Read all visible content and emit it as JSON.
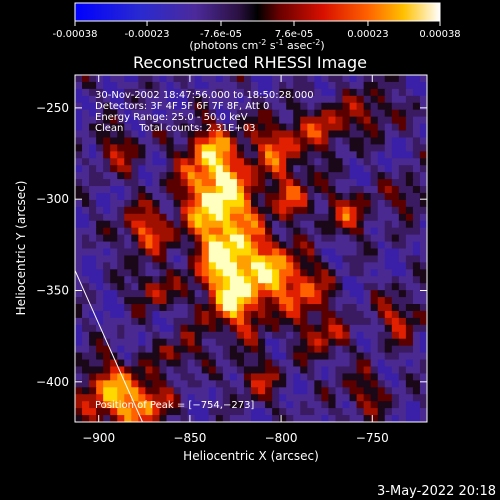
{
  "colorbar": {
    "ticks": [
      "-0.00038",
      "-0.00023",
      "-7.6e-05",
      "7.6e-05",
      "0.00023",
      "0.00038"
    ],
    "tick_values": [
      -0.00038,
      -0.00023,
      -7.6e-05,
      7.6e-05,
      0.00023,
      0.00038
    ],
    "range": [
      -0.00038,
      0.00038
    ],
    "unit_main": "(photons cm",
    "unit_sup1": "-2",
    "unit_mid": " s",
    "unit_sup2": "-1",
    "unit_tail": " asec",
    "unit_sup3": "-2",
    "unit_close": ")"
  },
  "chart_data": {
    "type": "heatmap",
    "title": "Reconstructed RHESSI Image",
    "xlabel": "Heliocentric X (arcsec)",
    "ylabel": "Heliocentric Y (arcsec)",
    "xlim": [
      -913,
      -720
    ],
    "ylim": [
      -422,
      -232
    ],
    "x_ticks": [
      -900,
      -850,
      -800,
      -750
    ],
    "x_tick_labels": [
      "−900",
      "−850",
      "−800",
      "−750"
    ],
    "y_ticks": [
      -250,
      -300,
      -350,
      -400
    ],
    "y_tick_labels": [
      "−250",
      "−300",
      "−350",
      "−400"
    ],
    "peak_position": [
      -754,
      -273
    ],
    "annotations": [
      "30-Nov-2002 18:47:56.000 to 18:50:28.000",
      "Detectors: 3F 4F 5F 6F 7F 8F, Att 0",
      "Energy Range: 25.0 - 50.0 keV",
      "Clean     Total counts: 2.31E+03"
    ],
    "peak_label": "Position of Peak = [−754,−273]",
    "limb_line": [
      [
        -913,
        -339
      ],
      [
        -876,
        -422
      ]
    ]
  },
  "timestamp": "3-May-2022 20:18"
}
